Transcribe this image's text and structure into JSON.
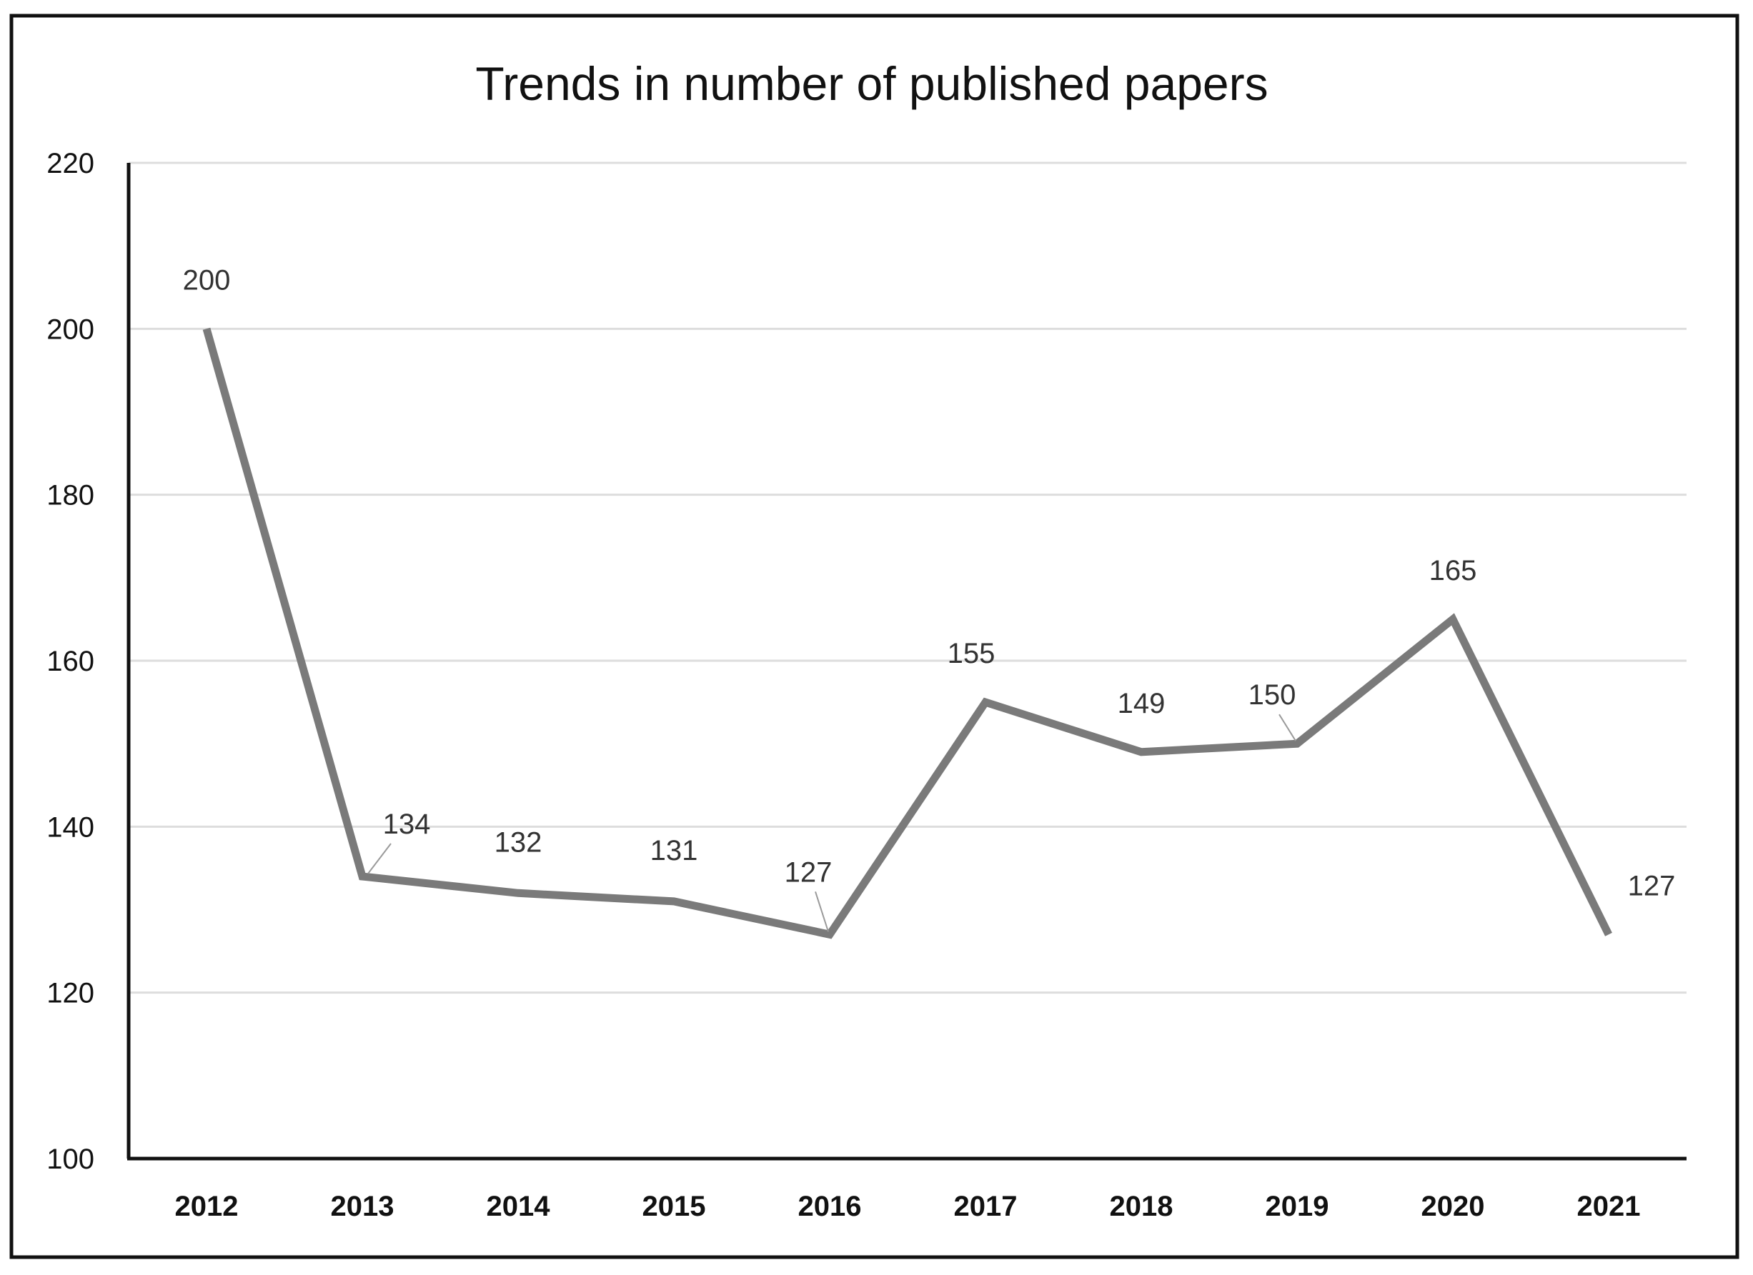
{
  "chart_data": {
    "type": "line",
    "title": "Trends in number of published papers",
    "xlabel": "",
    "ylabel": "",
    "categories": [
      "2012",
      "2013",
      "2014",
      "2015",
      "2016",
      "2017",
      "2018",
      "2019",
      "2020",
      "2021"
    ],
    "values": [
      200,
      134,
      132,
      131,
      127,
      155,
      149,
      150,
      165,
      127
    ],
    "data_labels": [
      "200",
      "134",
      "132",
      "131",
      "127",
      "155",
      "149",
      "150",
      "165",
      "127"
    ],
    "ylim": [
      100,
      220
    ],
    "yticks": [
      100,
      120,
      140,
      160,
      180,
      200,
      220
    ],
    "ytick_labels": [
      "100",
      "120",
      "140",
      "160",
      "180",
      "200",
      "220"
    ],
    "grid": "horizontal",
    "legend": "none",
    "colors": {
      "line": "#7a7a7a",
      "grid": "#dddddd",
      "axis": "#111111",
      "frame": "#111111",
      "leader": "#9a9a9a"
    }
  }
}
